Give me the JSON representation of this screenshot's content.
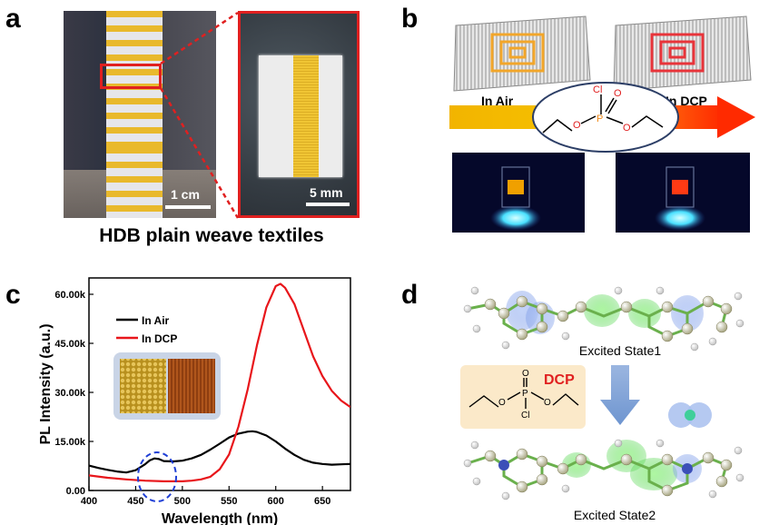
{
  "panels": {
    "a": {
      "letter": "a",
      "scale_left": "1 cm",
      "scale_right": "5 mm",
      "caption": "HDB plain weave textiles"
    },
    "b": {
      "letter": "b",
      "label_air": "In Air",
      "label_dcp": "In DCP",
      "atom_cl": "Cl",
      "atom_o_top": "O",
      "atom_p": "P",
      "atom_o_left": "O",
      "atom_o_right": "O"
    },
    "c": {
      "letter": "c"
    },
    "d": {
      "letter": "d",
      "excited_state_1": "Excited State1",
      "excited_state_2": "Excited State2",
      "dcp_label": "DCP",
      "atom_o_top": "O",
      "atom_p": "P",
      "atom_o_left": "O",
      "atom_o_right": "O",
      "atom_cl": "Cl"
    }
  },
  "colors": {
    "yellow_stripe": "#e9b92c",
    "frame_red": "#e02020",
    "arrow_yellow": "#f2b400",
    "arrow_red": "#ff2a00",
    "line_air": "#000000",
    "line_dcp": "#e8161b",
    "ellipse_dash": "#1f3fd6"
  },
  "chart_data": {
    "type": "line",
    "xlabel": "Wavelength (nm)",
    "ylabel": "PL Intensity (a.u.)",
    "xlim": [
      400,
      680
    ],
    "ylim": [
      0,
      65000
    ],
    "xticks": [
      "400",
      "450",
      "500",
      "550",
      "600",
      "650"
    ],
    "yticks": [
      "0.00",
      "15.00k",
      "30.00k",
      "45.00k",
      "60.00k"
    ],
    "legend_position": "top-left",
    "series": [
      {
        "name": "In Air",
        "color": "#000000",
        "x": [
          400,
          410,
          420,
          430,
          440,
          450,
          460,
          465,
          470,
          475,
          480,
          490,
          500,
          510,
          520,
          530,
          540,
          550,
          560,
          570,
          575,
          580,
          590,
          600,
          610,
          620,
          630,
          640,
          650,
          660,
          670,
          680
        ],
        "y": [
          7600,
          6900,
          6300,
          5800,
          5500,
          6200,
          8000,
          9200,
          9800,
          9600,
          9000,
          8900,
          9100,
          9800,
          10900,
          12500,
          14300,
          16200,
          17400,
          18000,
          18100,
          17900,
          16800,
          15000,
          12800,
          10900,
          9400,
          8500,
          8100,
          7900,
          8000,
          8100
        ]
      },
      {
        "name": "In DCP",
        "color": "#e8161b",
        "x": [
          400,
          420,
          440,
          460,
          480,
          500,
          510,
          520,
          530,
          540,
          550,
          560,
          570,
          580,
          590,
          600,
          605,
          610,
          620,
          630,
          640,
          650,
          660,
          670,
          680
        ],
        "y": [
          4600,
          3900,
          3400,
          3000,
          2800,
          2800,
          3000,
          3400,
          4200,
          6500,
          11000,
          19500,
          31000,
          44500,
          56000,
          62500,
          63200,
          62000,
          57000,
          49000,
          41000,
          35000,
          30500,
          27500,
          25500
        ]
      }
    ]
  }
}
